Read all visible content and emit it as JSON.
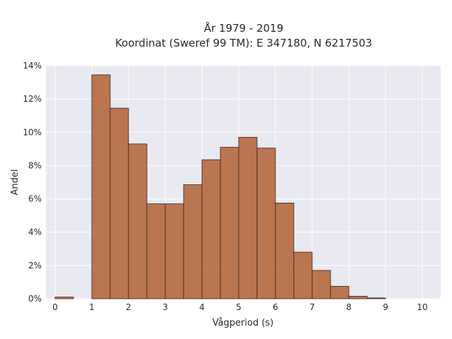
{
  "chart_data": {
    "type": "bar",
    "title_line1": "År 1979 - 2019",
    "title_line2": "Koordinat (Sweref 99 TM): E 347180, N 6217503",
    "xlabel": "Vågperiod (s)",
    "ylabel": "Andel",
    "xlim": [
      -0.25,
      10.5
    ],
    "ylim": [
      0,
      14
    ],
    "x_ticks": [
      0,
      1,
      2,
      3,
      4,
      5,
      6,
      7,
      8,
      9,
      10
    ],
    "y_ticks": [
      0,
      2,
      4,
      6,
      8,
      10,
      12,
      14
    ],
    "y_tick_suffix": "%",
    "grid": true,
    "bar_color": "#b5693f",
    "bar_edge_color": "#3a2418",
    "background": "#e9e9f1",
    "bins": [
      {
        "x0": 0.0,
        "x1": 0.5,
        "value": 0.1
      },
      {
        "x0": 1.0,
        "x1": 1.5,
        "value": 13.45
      },
      {
        "x0": 1.5,
        "x1": 2.0,
        "value": 11.45
      },
      {
        "x0": 2.0,
        "x1": 2.5,
        "value": 9.3
      },
      {
        "x0": 2.5,
        "x1": 3.0,
        "value": 5.7
      },
      {
        "x0": 3.0,
        "x1": 3.5,
        "value": 5.7
      },
      {
        "x0": 3.5,
        "x1": 4.0,
        "value": 6.85
      },
      {
        "x0": 4.0,
        "x1": 4.5,
        "value": 8.35
      },
      {
        "x0": 4.5,
        "x1": 5.0,
        "value": 9.1
      },
      {
        "x0": 5.0,
        "x1": 5.5,
        "value": 9.7
      },
      {
        "x0": 5.5,
        "x1": 6.0,
        "value": 9.05
      },
      {
        "x0": 6.0,
        "x1": 6.5,
        "value": 5.75
      },
      {
        "x0": 6.5,
        "x1": 7.0,
        "value": 2.8
      },
      {
        "x0": 7.0,
        "x1": 7.5,
        "value": 1.7
      },
      {
        "x0": 7.5,
        "x1": 8.0,
        "value": 0.75
      },
      {
        "x0": 8.0,
        "x1": 8.5,
        "value": 0.15
      },
      {
        "x0": 8.5,
        "x1": 9.0,
        "value": 0.05
      }
    ]
  }
}
